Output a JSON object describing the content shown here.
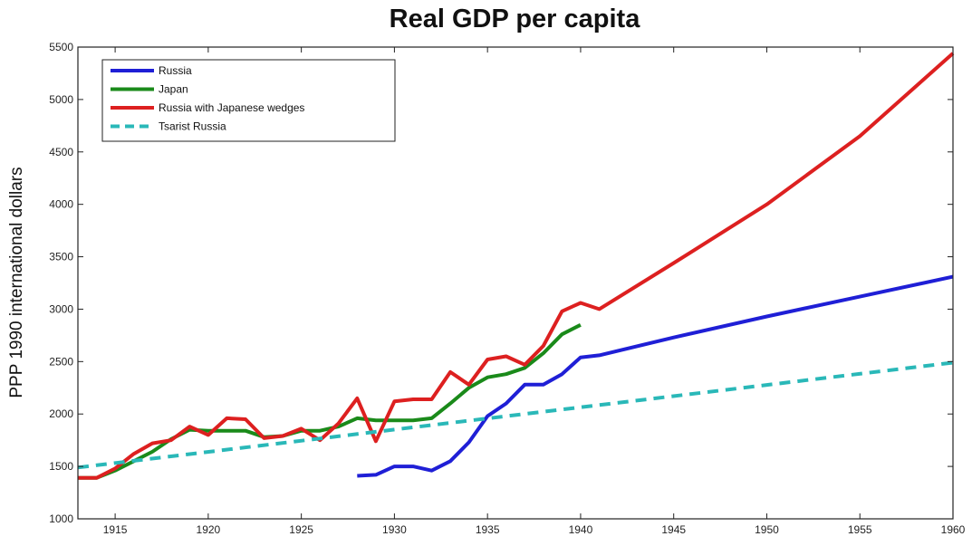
{
  "chart_data": {
    "type": "line",
    "title": "Real GDP per capita",
    "xlabel": "",
    "ylabel": "PPP 1990 international dollars",
    "xlim": [
      1913,
      1960
    ],
    "ylim": [
      1000,
      5500
    ],
    "xticks": [
      1915,
      1920,
      1925,
      1930,
      1935,
      1940,
      1945,
      1950,
      1955,
      1960
    ],
    "yticks": [
      1000,
      1500,
      2000,
      2500,
      3000,
      3500,
      4000,
      4500,
      5000,
      5500
    ],
    "grid": false,
    "legend_position": "top-left",
    "series": [
      {
        "name": "Russia",
        "color": "#1f1fd6",
        "style": "solid",
        "x": [
          1928,
          1929,
          1930,
          1931,
          1932,
          1933,
          1934,
          1935,
          1936,
          1937,
          1938,
          1939,
          1940,
          1941,
          1945,
          1950,
          1955,
          1960
        ],
        "y": [
          1410,
          1420,
          1500,
          1500,
          1460,
          1550,
          1730,
          1980,
          2100,
          2280,
          2280,
          2380,
          2540,
          2560,
          2730,
          2930,
          3120,
          3310
        ]
      },
      {
        "name": "Japan",
        "color": "#1a8a1a",
        "style": "solid",
        "x": [
          1913,
          1914,
          1915,
          1916,
          1917,
          1918,
          1919,
          1920,
          1921,
          1922,
          1923,
          1924,
          1925,
          1926,
          1927,
          1928,
          1929,
          1930,
          1931,
          1932,
          1933,
          1934,
          1935,
          1936,
          1937,
          1938,
          1939,
          1940
        ],
        "y": [
          1390,
          1390,
          1460,
          1550,
          1640,
          1760,
          1850,
          1840,
          1840,
          1840,
          1780,
          1790,
          1840,
          1840,
          1880,
          1960,
          1940,
          1940,
          1940,
          1960,
          2100,
          2250,
          2350,
          2380,
          2440,
          2580,
          2760,
          2850
        ]
      },
      {
        "name": "Russia with Japanese wedges",
        "color": "#dd2020",
        "style": "solid",
        "x": [
          1913,
          1914,
          1915,
          1916,
          1917,
          1918,
          1919,
          1920,
          1921,
          1922,
          1923,
          1924,
          1925,
          1926,
          1927,
          1928,
          1929,
          1930,
          1931,
          1932,
          1933,
          1934,
          1935,
          1936,
          1937,
          1938,
          1939,
          1940,
          1941,
          1945,
          1950,
          1955,
          1960
        ],
        "y": [
          1390,
          1390,
          1480,
          1620,
          1720,
          1750,
          1880,
          1800,
          1960,
          1950,
          1770,
          1790,
          1860,
          1750,
          1910,
          2150,
          1740,
          2120,
          2140,
          2140,
          2400,
          2280,
          2520,
          2550,
          2470,
          2650,
          2980,
          3060,
          3000,
          3440,
          4000,
          4650,
          5440
        ]
      },
      {
        "name": "Tsarist Russia",
        "color": "#2ab8b8",
        "style": "dashed",
        "x": [
          1913,
          1960
        ],
        "y": [
          1490,
          2490
        ]
      }
    ]
  }
}
